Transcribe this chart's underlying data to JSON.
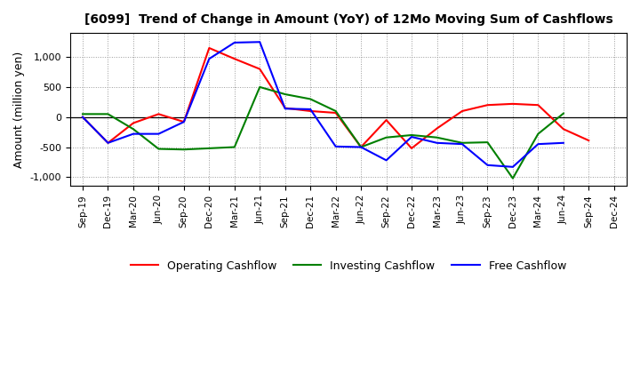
{
  "title": "[6099]  Trend of Change in Amount (YoY) of 12Mo Moving Sum of Cashflows",
  "ylabel": "Amount (million yen)",
  "x_labels": [
    "Sep-19",
    "Dec-19",
    "Mar-20",
    "Jun-20",
    "Sep-20",
    "Dec-20",
    "Mar-21",
    "Jun-21",
    "Sep-21",
    "Dec-21",
    "Mar-22",
    "Jun-22",
    "Sep-22",
    "Dec-22",
    "Mar-23",
    "Jun-23",
    "Sep-23",
    "Dec-23",
    "Mar-24",
    "Jun-24",
    "Sep-24",
    "Dec-24"
  ],
  "operating": [
    0,
    -430,
    -100,
    50,
    -80,
    1150,
    970,
    800,
    150,
    100,
    70,
    -500,
    -50,
    -520,
    -190,
    100,
    200,
    220,
    200,
    -200,
    -390,
    null
  ],
  "investing": [
    50,
    50,
    -200,
    -530,
    -540,
    -520,
    -500,
    500,
    380,
    300,
    100,
    -500,
    -340,
    -300,
    -340,
    -430,
    -420,
    -1020,
    -280,
    60,
    null,
    null
  ],
  "free": [
    0,
    -430,
    -280,
    -280,
    -80,
    970,
    1240,
    1250,
    140,
    130,
    -490,
    -500,
    -720,
    -330,
    -430,
    -450,
    -800,
    -830,
    -450,
    -430,
    null,
    null
  ],
  "operating_color": "#ff0000",
  "investing_color": "#008000",
  "free_color": "#0000ff",
  "ylim": [
    -1150,
    1400
  ],
  "yticks": [
    -1000,
    -500,
    0,
    500,
    1000
  ],
  "background_color": "#ffffff",
  "grid_color": "#999999"
}
